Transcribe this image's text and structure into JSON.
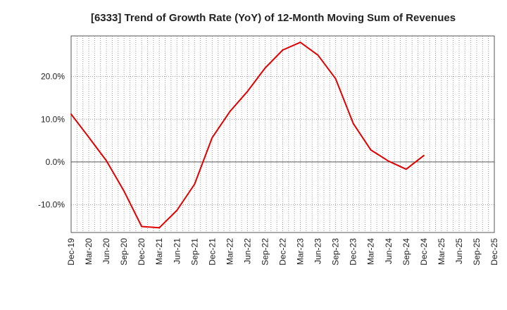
{
  "chart_data": {
    "type": "line",
    "title": "[6333]  Trend of Growth Rate (YoY) of 12-Month Moving Sum of Revenues",
    "xlabel": "",
    "ylabel": "",
    "x_tick_labels": [
      "Dec-19",
      "Mar-20",
      "Jun-20",
      "Sep-20",
      "Dec-20",
      "Mar-21",
      "Jun-21",
      "Sep-21",
      "Dec-21",
      "Mar-22",
      "Jun-22",
      "Sep-22",
      "Dec-22",
      "Mar-23",
      "Jun-23",
      "Sep-23",
      "Dec-23",
      "Mar-24",
      "Jun-24",
      "Sep-24",
      "Dec-24",
      "Mar-25",
      "Jun-25",
      "Sep-25",
      "Dec-25"
    ],
    "y_ticks": [
      -10,
      0,
      10,
      20
    ],
    "y_tick_labels": [
      "-10.0%",
      "0.0%",
      "10.0%",
      "20.0%"
    ],
    "ylim": [
      -16.5,
      29.5
    ],
    "grid": true,
    "series": [
      {
        "color": "#e00000",
        "x": [
          "Dec-19",
          "Mar-20",
          "Jun-20",
          "Sep-20",
          "Dec-20",
          "Mar-21",
          "Jun-21",
          "Sep-21",
          "Dec-21",
          "Mar-22",
          "Jun-22",
          "Sep-22",
          "Dec-22",
          "Mar-23",
          "Jun-23",
          "Sep-23",
          "Dec-23",
          "Mar-24",
          "Jun-24",
          "Sep-24",
          "Dec-24"
        ],
        "values": [
          11.2,
          5.8,
          0.3,
          -6.8,
          -15.1,
          -15.4,
          -11.3,
          -5.2,
          5.7,
          11.8,
          16.5,
          22.0,
          26.2,
          28.0,
          25.0,
          19.5,
          9.0,
          2.8,
          0.2,
          -1.7,
          1.5
        ]
      }
    ]
  }
}
